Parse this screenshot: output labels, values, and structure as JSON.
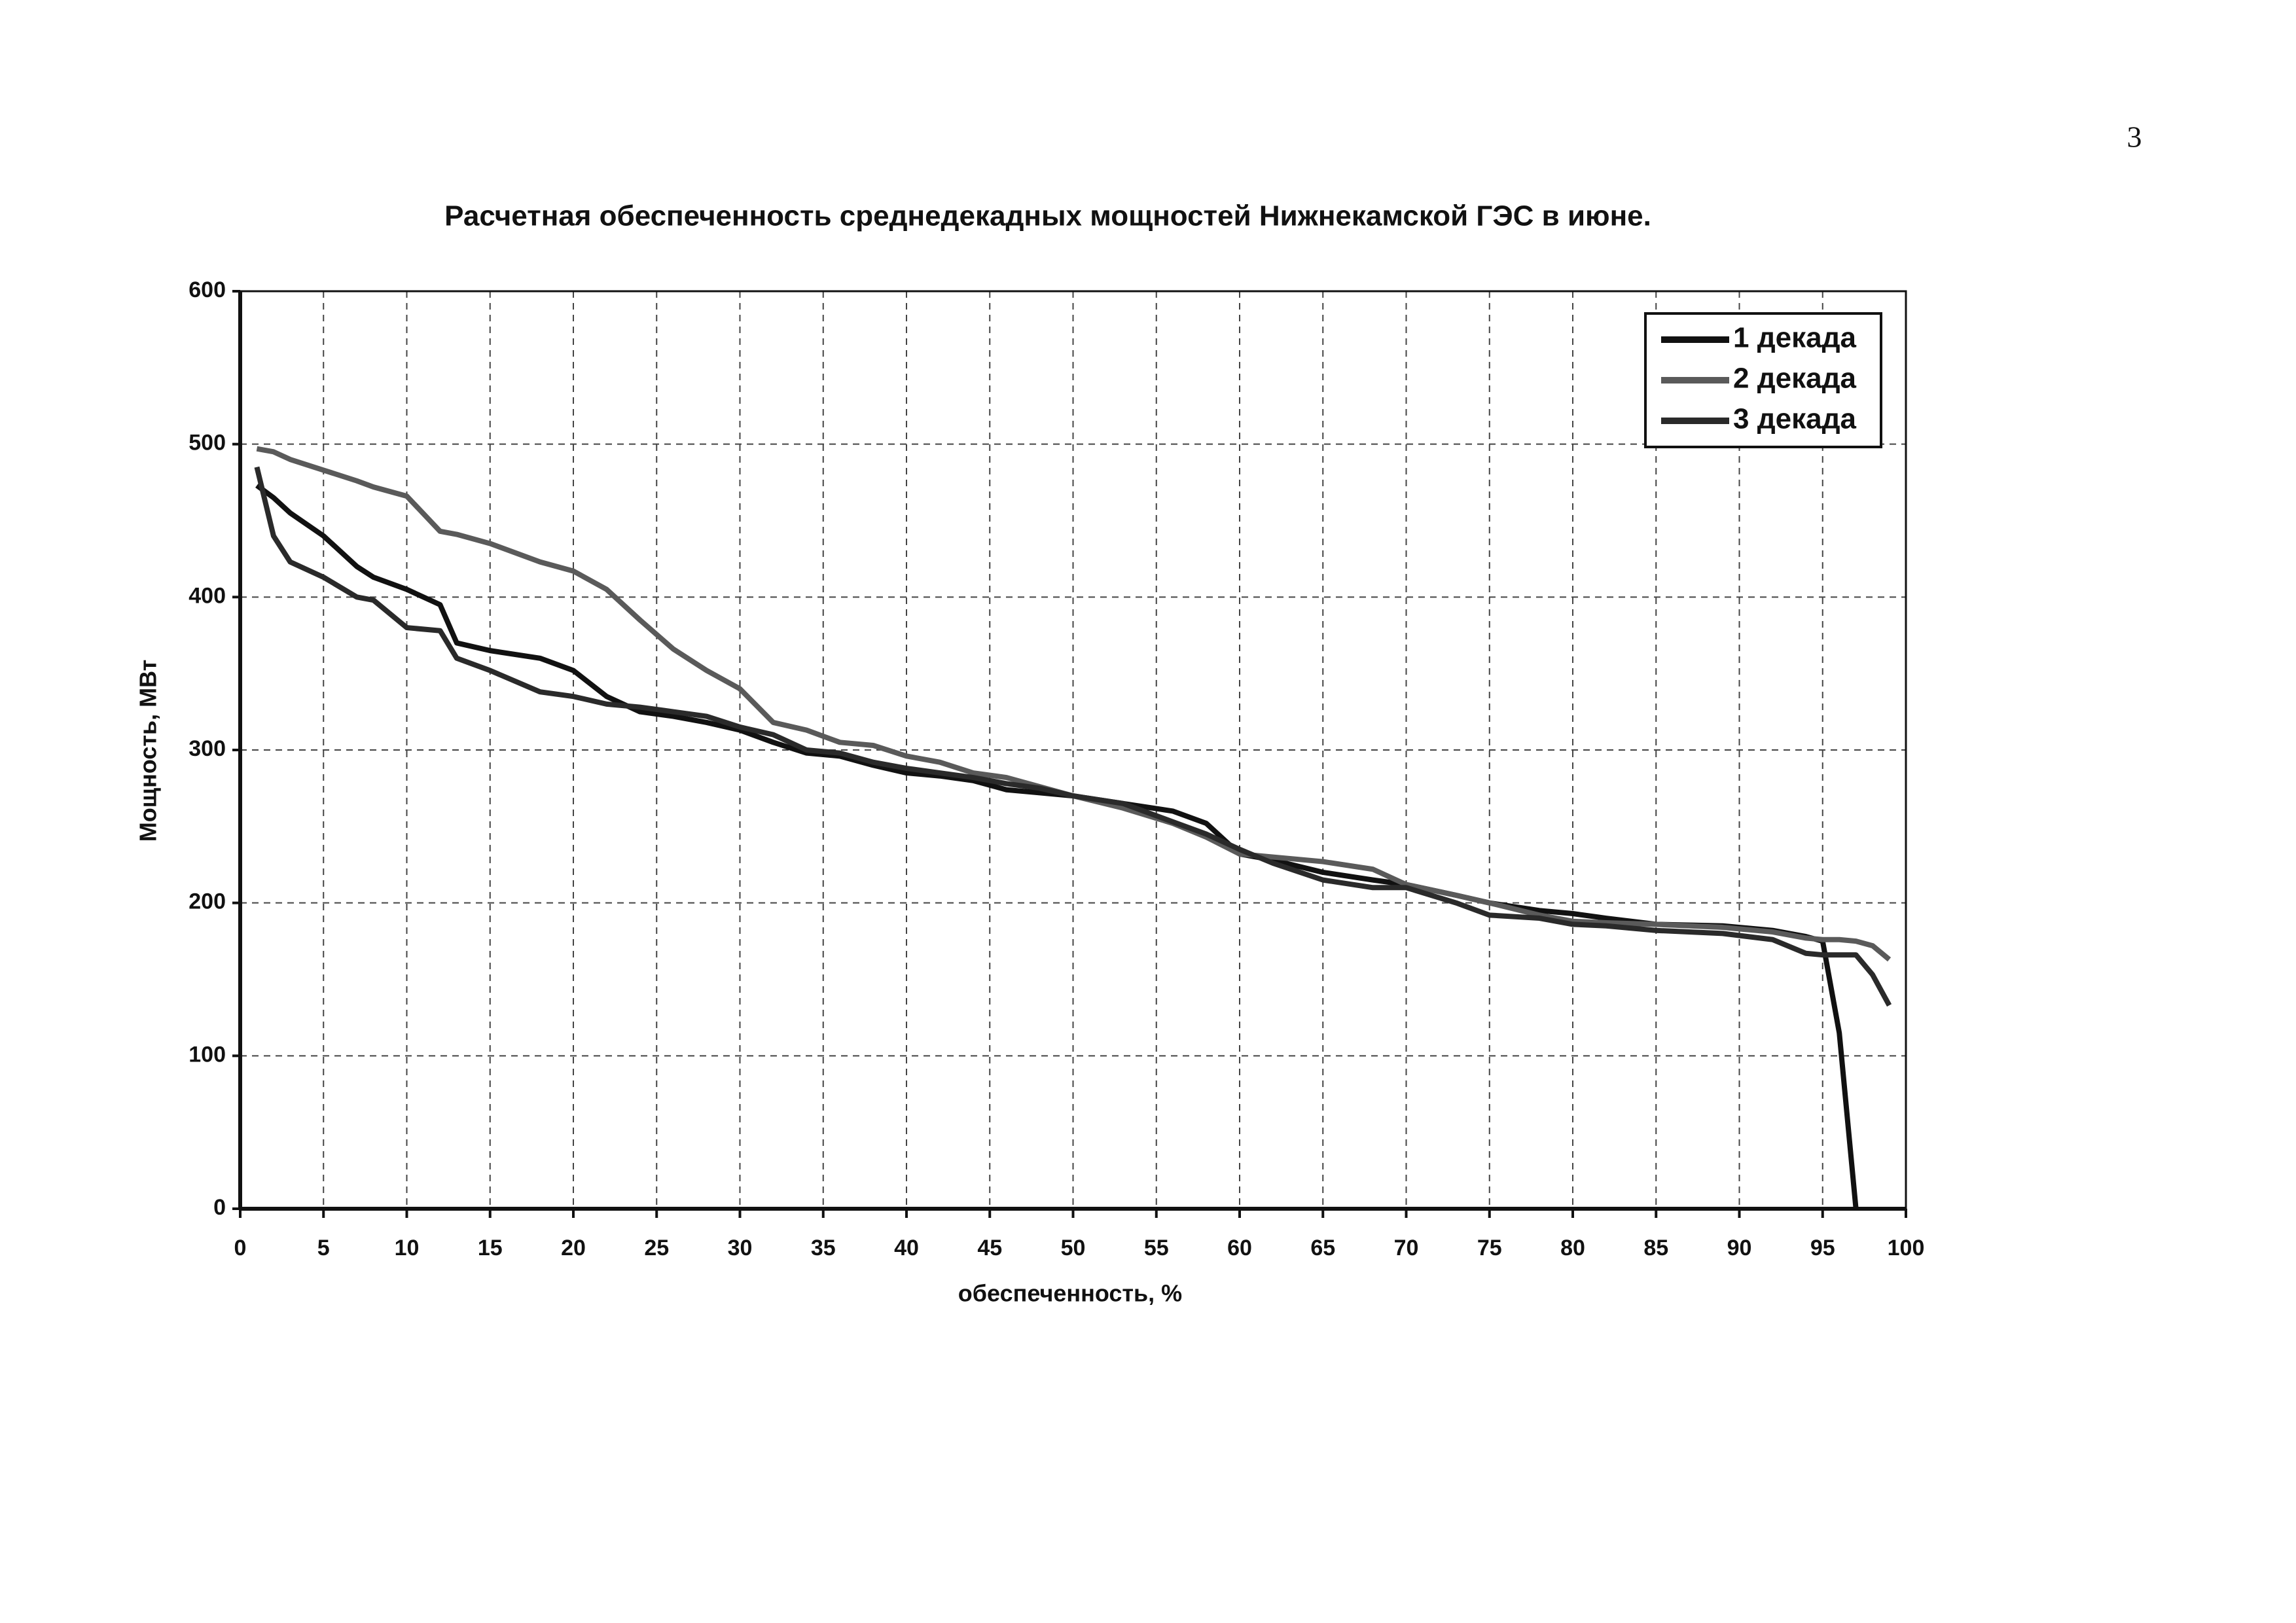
{
  "page_number": "3",
  "chart_data": {
    "type": "line",
    "title": "Расчетная обеспеченность среднедекадных мощностей Нижнекамской ГЭС в июне.",
    "x_label": "обеспеченность, %",
    "y_label": "Мощность, МВт",
    "x": [
      1,
      2,
      3,
      5,
      7,
      8,
      10,
      12,
      13,
      15,
      18,
      20,
      22,
      24,
      26,
      28,
      30,
      32,
      34,
      36,
      38,
      40,
      42,
      44,
      46,
      48,
      50,
      53,
      56,
      58,
      60,
      62,
      65,
      68,
      70,
      73,
      75,
      78,
      80,
      82,
      85,
      89,
      92,
      94,
      95,
      96,
      97,
      98,
      99
    ],
    "series": [
      {
        "name": "1 декада",
        "color": "#111111",
        "values": [
          473,
          465,
          455,
          440,
          420,
          413,
          405,
          395,
          370,
          365,
          360,
          352,
          335,
          325,
          322,
          318,
          313,
          305,
          298,
          296,
          290,
          285,
          283,
          280,
          274,
          272,
          270,
          265,
          260,
          252,
          232,
          228,
          220,
          215,
          212,
          205,
          200,
          195,
          193,
          190,
          186,
          185,
          182,
          178,
          175,
          115,
          0,
          null,
          null
        ]
      },
      {
        "name": "2 декада",
        "color": "#5a5a5a",
        "values": [
          497,
          495,
          490,
          483,
          476,
          472,
          466,
          443,
          441,
          435,
          423,
          417,
          405,
          385,
          366,
          352,
          340,
          318,
          313,
          305,
          303,
          296,
          292,
          285,
          282,
          276,
          270,
          262,
          252,
          243,
          232,
          230,
          227,
          222,
          212,
          205,
          200,
          192,
          188,
          187,
          186,
          184,
          181,
          177,
          176,
          176,
          175,
          172,
          163
        ]
      },
      {
        "name": "3 декада",
        "color": "#2a2a2a",
        "values": [
          485,
          440,
          423,
          413,
          400,
          398,
          380,
          378,
          360,
          352,
          338,
          335,
          330,
          328,
          325,
          322,
          315,
          310,
          300,
          298,
          292,
          288,
          285,
          282,
          278,
          275,
          270,
          265,
          253,
          245,
          235,
          226,
          215,
          210,
          210,
          200,
          192,
          190,
          186,
          185,
          182,
          180,
          176,
          167,
          166,
          166,
          166,
          153,
          133
        ]
      }
    ],
    "xlim": [
      0,
      100
    ],
    "xticks": [
      0,
      5,
      10,
      15,
      20,
      25,
      30,
      35,
      40,
      45,
      50,
      55,
      60,
      65,
      70,
      75,
      80,
      85,
      90,
      95,
      100
    ],
    "ylim": [
      0,
      600
    ],
    "yticks": [
      0,
      100,
      200,
      300,
      400,
      500,
      600
    ],
    "grid": true,
    "legend": "top-right"
  }
}
